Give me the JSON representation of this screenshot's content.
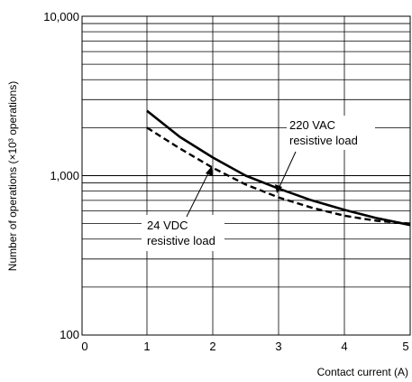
{
  "chart_data": {
    "type": "line",
    "xlabel": "Contact current (A)",
    "ylabel": "Number of operations (×10³ operations)",
    "x_ticks": [
      "0",
      "1",
      "2",
      "3",
      "4",
      "5"
    ],
    "y_ticks": [
      "100",
      "1,000",
      "10,000"
    ],
    "xlim": [
      0,
      5
    ],
    "ylim": [
      100,
      10000
    ],
    "y_scale": "log",
    "grid": true,
    "series": [
      {
        "name": "220 VAC resistive load",
        "style": "solid",
        "x": [
          1,
          1.5,
          2,
          2.5,
          3,
          3.5,
          4,
          4.5,
          5
        ],
        "y": [
          2550,
          1750,
          1300,
          1000,
          830,
          700,
          610,
          540,
          490
        ]
      },
      {
        "name": "24 VDC resistive load",
        "style": "dashed",
        "x": [
          1,
          1.5,
          2,
          2.5,
          3,
          3.5,
          4,
          4.5,
          5
        ],
        "y": [
          2000,
          1480,
          1120,
          880,
          730,
          630,
          560,
          520,
          500
        ]
      }
    ],
    "annotations": [
      {
        "line1": "220 VAC",
        "line2": "resistive load"
      },
      {
        "line1": "24 VDC",
        "line2": "resistive load"
      }
    ]
  }
}
